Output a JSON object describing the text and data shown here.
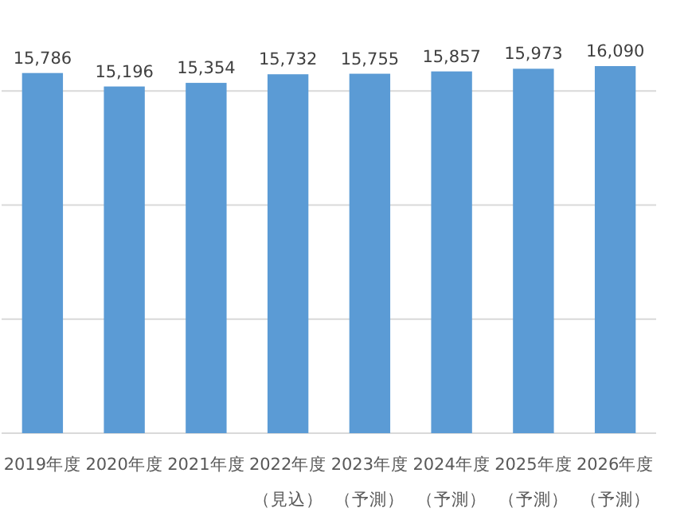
{
  "chart_data": {
    "type": "bar",
    "categories": [
      "2019年度",
      "2020年度",
      "2021年度",
      "2022年度（見込）",
      "2023年度（予測）",
      "2024年度（予測）",
      "2025年度（予測）",
      "2026年度（予測）"
    ],
    "values": [
      15786,
      15196,
      15354,
      15732,
      15755,
      15857,
      15973,
      16090
    ],
    "value_labels": [
      "15,786",
      "15,196",
      "15,354",
      "15,732",
      "15,755",
      "15,857",
      "15,973",
      "16,090"
    ],
    "color": "#5b9bd5",
    "grid": "y",
    "tick_labels": "x"
  }
}
